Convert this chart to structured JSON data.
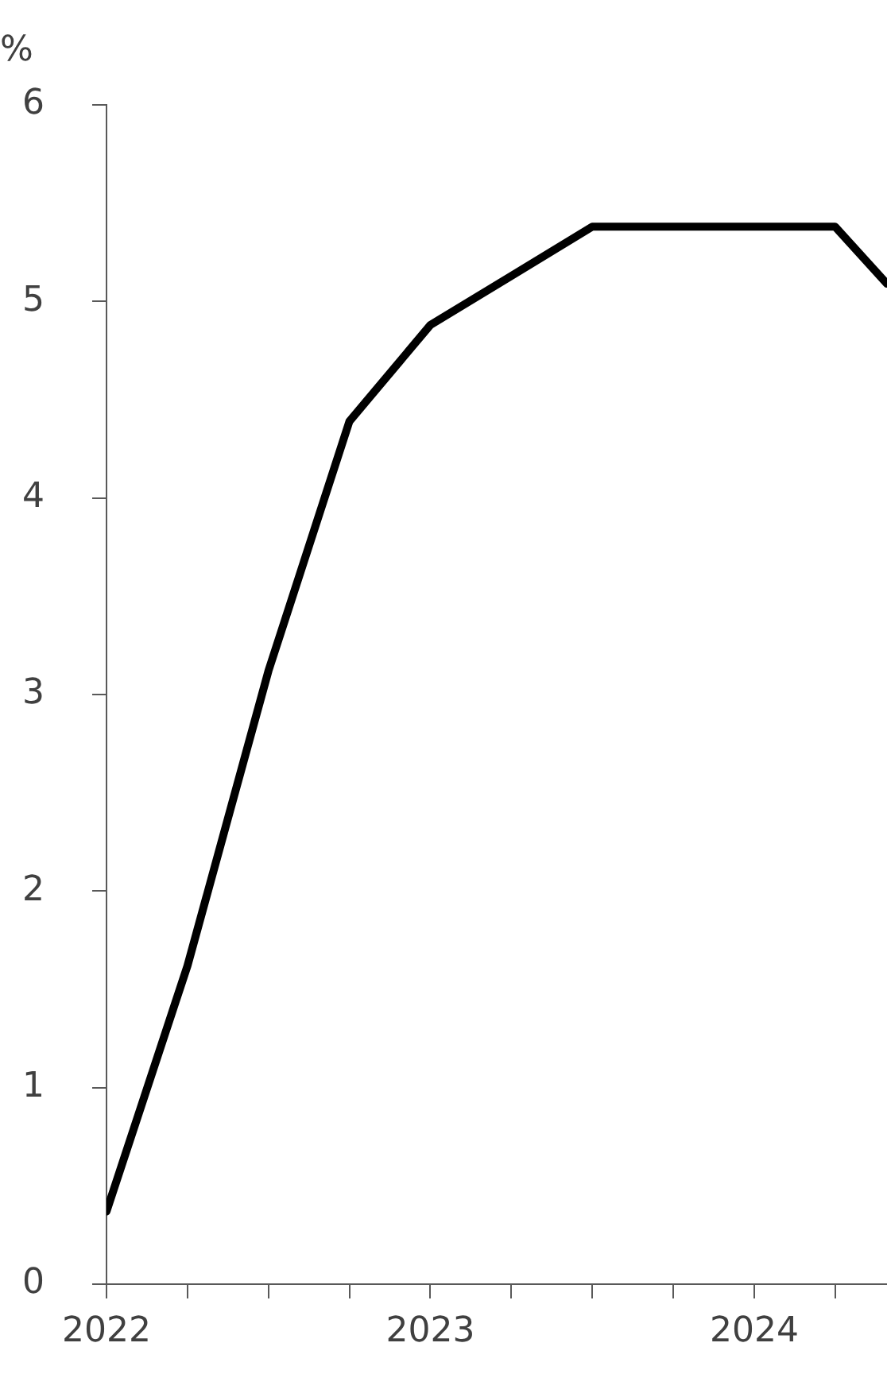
{
  "chart_data": {
    "type": "line",
    "ylabel": "%",
    "x": [
      2022,
      2022.25,
      2022.5,
      2022.75,
      2023,
      2023.25,
      2023.5,
      2023.75,
      2024,
      2024.25,
      2024.41
    ],
    "series": [
      {
        "color": "#000000",
        "values": [
          0.37,
          1.62,
          3.12,
          4.39,
          4.88,
          5.13,
          5.38,
          5.38,
          5.38,
          5.38,
          5.09
        ]
      }
    ],
    "xlim": [
      2022,
      2024.41
    ],
    "xticks": [
      2022,
      {
        "value": 2022.25,
        "label": null
      },
      {
        "value": 2022.5,
        "label": null
      },
      {
        "value": 2022.75,
        "label": null
      },
      2023,
      {
        "value": 2023.25,
        "label": null
      },
      {
        "value": 2023.5,
        "label": null
      },
      {
        "value": 2023.75,
        "label": null
      },
      2024,
      {
        "value": 2024.25,
        "label": null
      }
    ],
    "ylim": [
      0,
      6
    ],
    "yticks": [
      0,
      1,
      2,
      3,
      4,
      5,
      6
    ],
    "grid": false,
    "legend": false,
    "marker": "none",
    "line_style": "solid"
  }
}
